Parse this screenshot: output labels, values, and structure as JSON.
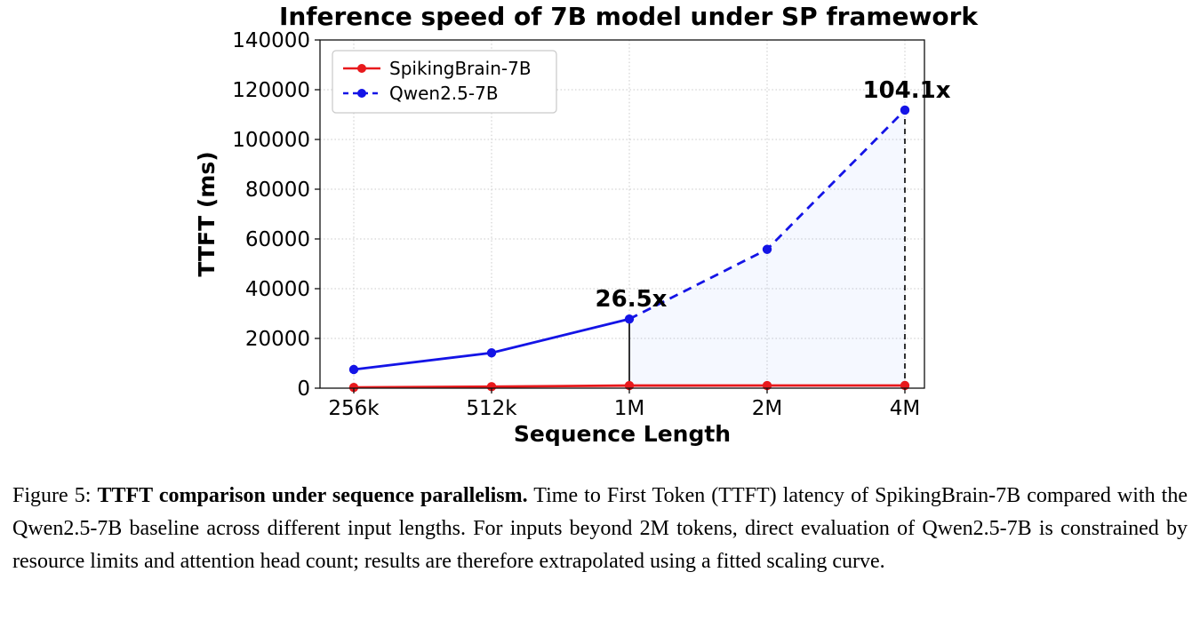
{
  "chart_data": {
    "type": "line",
    "title": "Inference speed of 7B model under SP framework",
    "xlabel": "Sequence Length",
    "ylabel": "TTFT (ms)",
    "categories": [
      "256k",
      "512k",
      "1M",
      "2M",
      "4M"
    ],
    "ylim": [
      0,
      140000
    ],
    "ytick_step": 20000,
    "grid": true,
    "legend_position": "upper-left",
    "series": [
      {
        "name": "SpikingBrain-7B",
        "color": "#e8191c",
        "style": "solid",
        "values": [
          300,
          600,
          1050,
          1060,
          1075
        ]
      },
      {
        "name": "Qwen2.5-7B",
        "color": "#1414e6",
        "style": "solid-then-dashed",
        "dashed_from_index": 2,
        "values": [
          7500,
          14200,
          27800,
          55800,
          111800
        ]
      }
    ],
    "annotations": [
      {
        "label": "26.5x",
        "category": "1M",
        "value": 27800,
        "line_style": "solid"
      },
      {
        "label": "104.1x",
        "category": "4M",
        "value": 111800,
        "line_style": "dashed"
      }
    ]
  },
  "caption": {
    "prefix": "Figure 5: ",
    "bold": "TTFT comparison under sequence parallelism.",
    "body": " Time to First Token (TTFT) latency of SpikingBrain-7B compared with the Qwen2.5-7B baseline across different input lengths. For inputs beyond 2M tokens, direct evaluation of Qwen2.5-7B is constrained by resource limits and attention head count; results are therefore extrapolated using a fitted scaling curve."
  }
}
